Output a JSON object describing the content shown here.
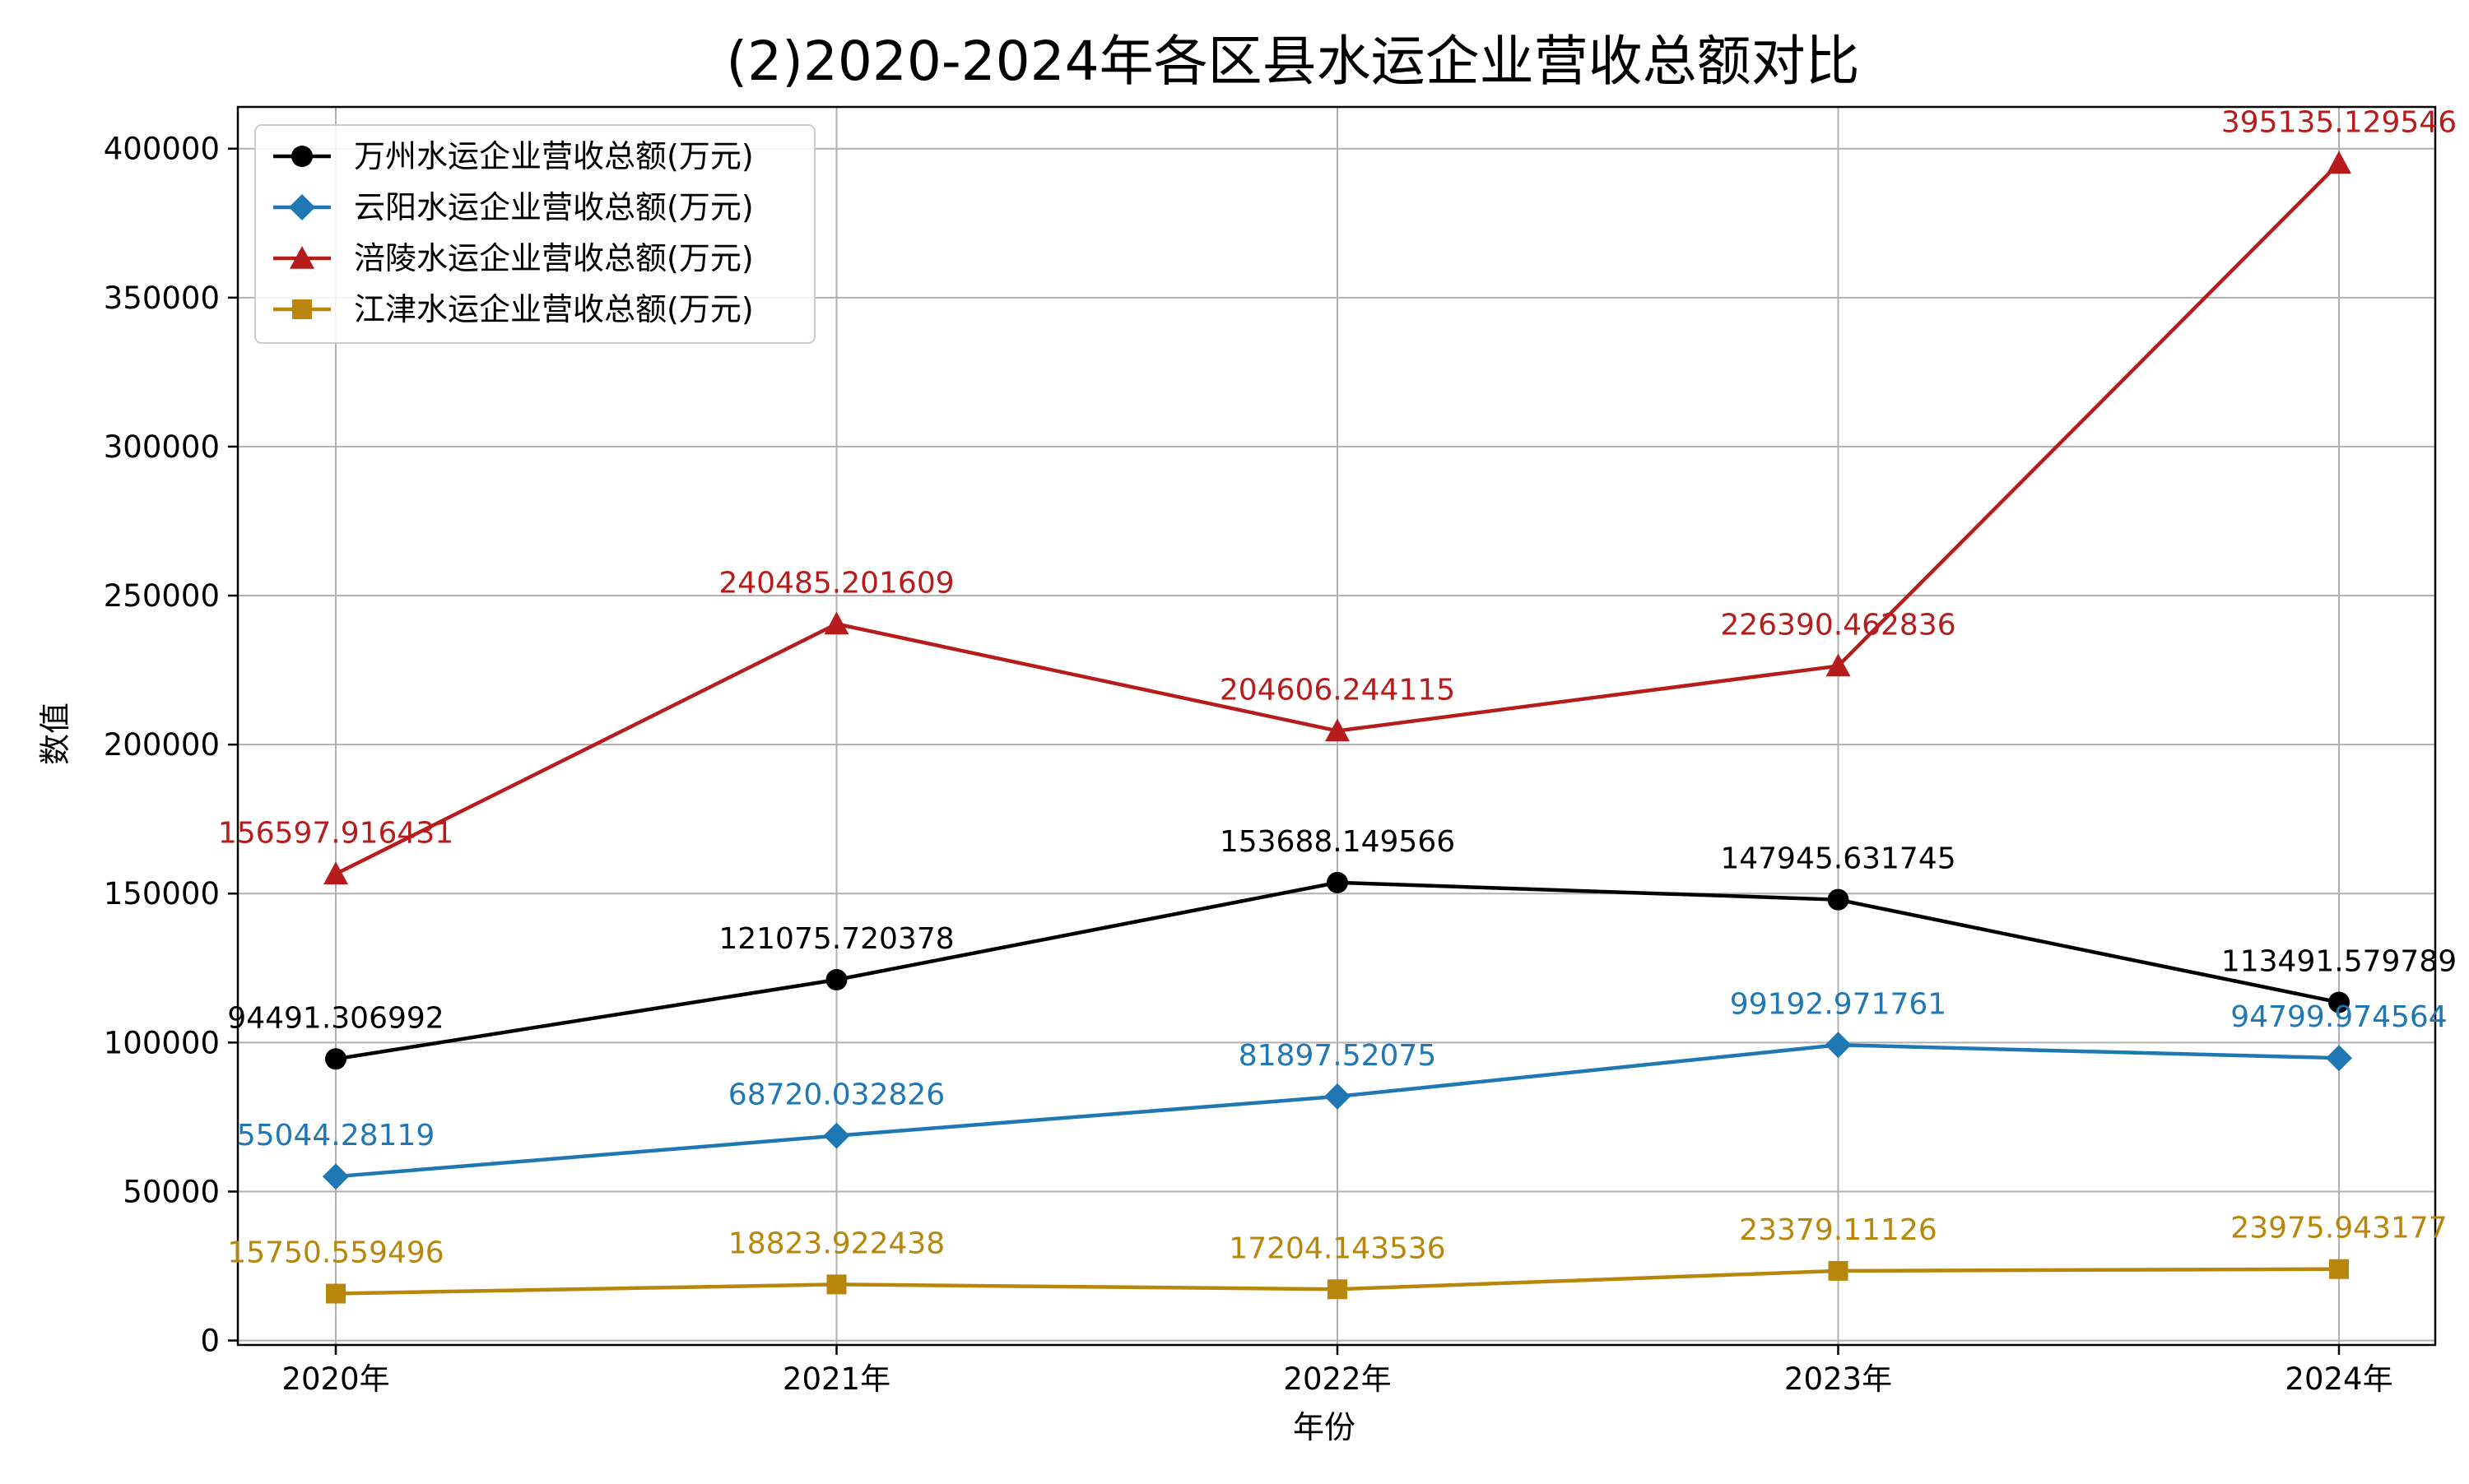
{
  "chart_data": {
    "type": "line",
    "title": "(2)2020-2024年各区县水运企业营收总额对比",
    "xlabel": "年份",
    "ylabel": "数值",
    "categories": [
      "2020年",
      "2021年",
      "2022年",
      "2023年",
      "2024年"
    ],
    "ylim": [
      -1500,
      414000
    ],
    "yticks": [
      0,
      50000,
      100000,
      150000,
      200000,
      250000,
      300000,
      350000,
      400000
    ],
    "grid": true,
    "legend_position": "top-left",
    "series": [
      {
        "name": "万州水运企业营收总额(万元)",
        "color": "#000000",
        "marker": "circle",
        "values": [
          94491.306992,
          121075.720378,
          153688.149566,
          147945.631745,
          113491.579789
        ],
        "labels": [
          "94491.306992",
          "121075.720378",
          "153688.149566",
          "147945.631745",
          "113491.579789"
        ]
      },
      {
        "name": "云阳水运企业营收总额(万元)",
        "color": "#1f77b4",
        "marker": "diamond",
        "values": [
          55044.28119,
          68720.032826,
          81897.52075,
          99192.971761,
          94799.974564
        ],
        "labels": [
          "55044.28119",
          "68720.032826",
          "81897.52075",
          "99192.971761",
          "94799.974564"
        ]
      },
      {
        "name": "涪陵水运企业营收总额(万元)",
        "color": "#b71c1c",
        "marker": "triangle",
        "values": [
          156597.916431,
          240485.201609,
          204606.244115,
          226390.462836,
          395135.129546
        ],
        "labels": [
          "156597.916431",
          "240485.201609",
          "204606.244115",
          "226390.462836",
          "395135.129546"
        ]
      },
      {
        "name": "江津水运企业营收总额(万元)",
        "color": "#b8860b",
        "marker": "square",
        "values": [
          15750.559496,
          18823.922438,
          17204.143536,
          23379.11126,
          23975.943177
        ],
        "labels": [
          "15750.559496",
          "18823.922438",
          "17204.143536",
          "23379.11126",
          "23975.943177"
        ]
      }
    ]
  }
}
